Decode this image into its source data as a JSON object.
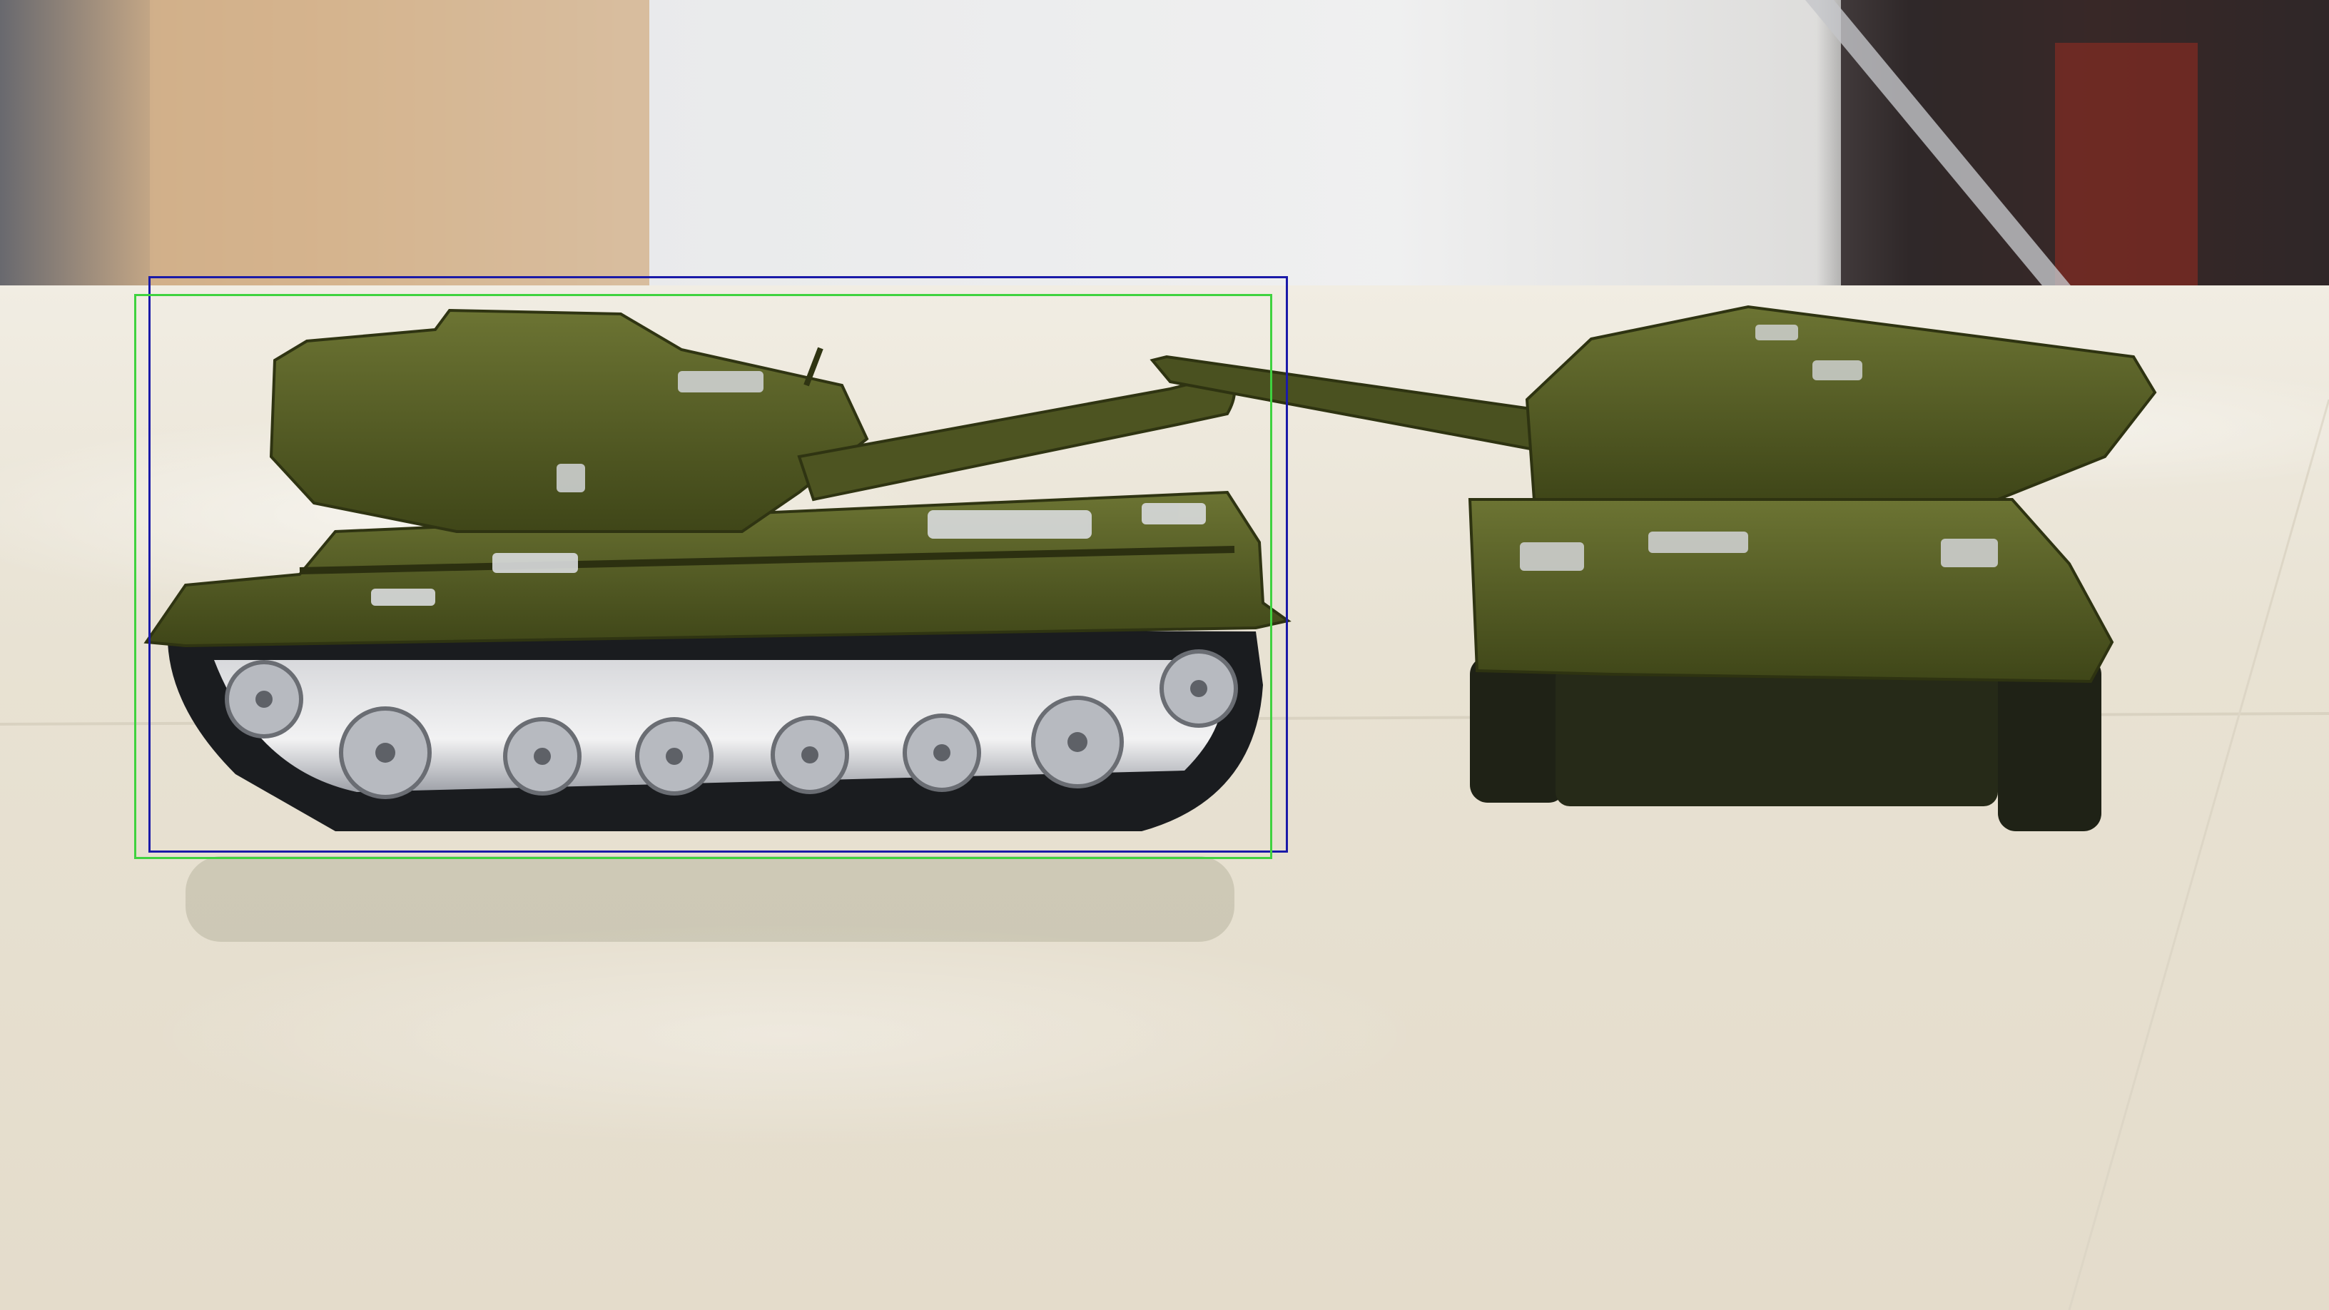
{
  "image": {
    "description_free": true,
    "colors": {
      "floor": "#e9e3d4",
      "tank_olive": "#5a6228",
      "tank_dark": "#3c4219",
      "track_black": "#1a1c1f",
      "wheel_silver": "#c9ccd0",
      "box_blue": "#1a1aa8",
      "box_green": "#3fd23f"
    }
  },
  "annotations": {
    "boxes": [
      {
        "color": "blue"
      },
      {
        "color": "green"
      }
    ]
  }
}
